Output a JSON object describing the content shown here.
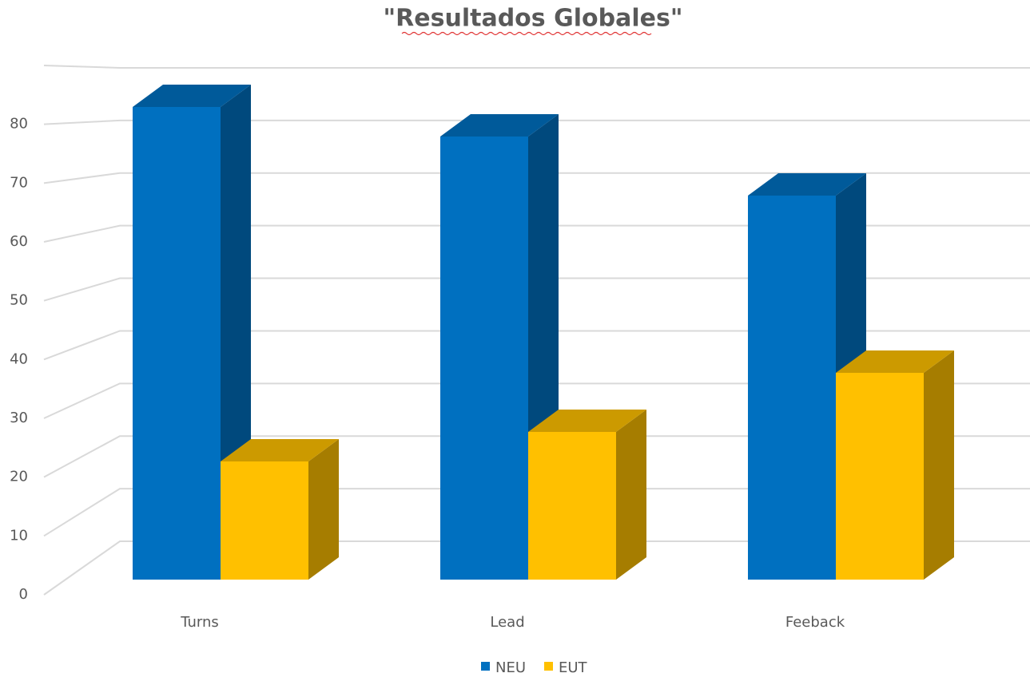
{
  "chart_data": {
    "type": "bar3d",
    "title": "\"Resultados Globales\"",
    "categories": [
      "Turns",
      "Lead",
      "Feeback"
    ],
    "series": [
      {
        "name": "NEU",
        "color": "#0070c0",
        "values": [
          80,
          75,
          65
        ]
      },
      {
        "name": "EUT",
        "color": "#ffc000",
        "values": [
          20,
          25,
          35
        ]
      }
    ],
    "ylim": [
      0,
      90
    ],
    "yticks": [
      0,
      10,
      20,
      30,
      40,
      50,
      60,
      70,
      80
    ],
    "grid": true,
    "legend": "bottom"
  }
}
